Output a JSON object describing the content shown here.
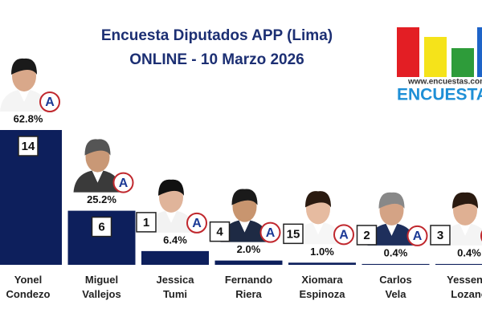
{
  "chart_data": {
    "type": "bar",
    "title": "Encuesta Diputados APP (Lima)",
    "subtitle": "ONLINE - 10 Marzo 2026",
    "categories": [
      "Yonel Condezo",
      "Miguel Vallejos",
      "Jessica Tumi",
      "Fernando Riera",
      "Xiomara Espinoza",
      "Carlos Vela",
      "Yessenia Lozano"
    ],
    "values": [
      62.8,
      25.2,
      6.4,
      2.0,
      1.0,
      0.4,
      0.4
    ],
    "value_labels": [
      "62.8%",
      "25.2%",
      "6.4%",
      "2.0%",
      "1.0%",
      "0.4%",
      "0.4%"
    ],
    "candidate_numbers": [
      "14",
      "6",
      "1",
      "4",
      "15",
      "2",
      "3"
    ],
    "party_label": "A",
    "color": "#0d1f5c"
  },
  "logo": {
    "url": "www.encuestas.com.p",
    "name": "ENCUESTA"
  }
}
